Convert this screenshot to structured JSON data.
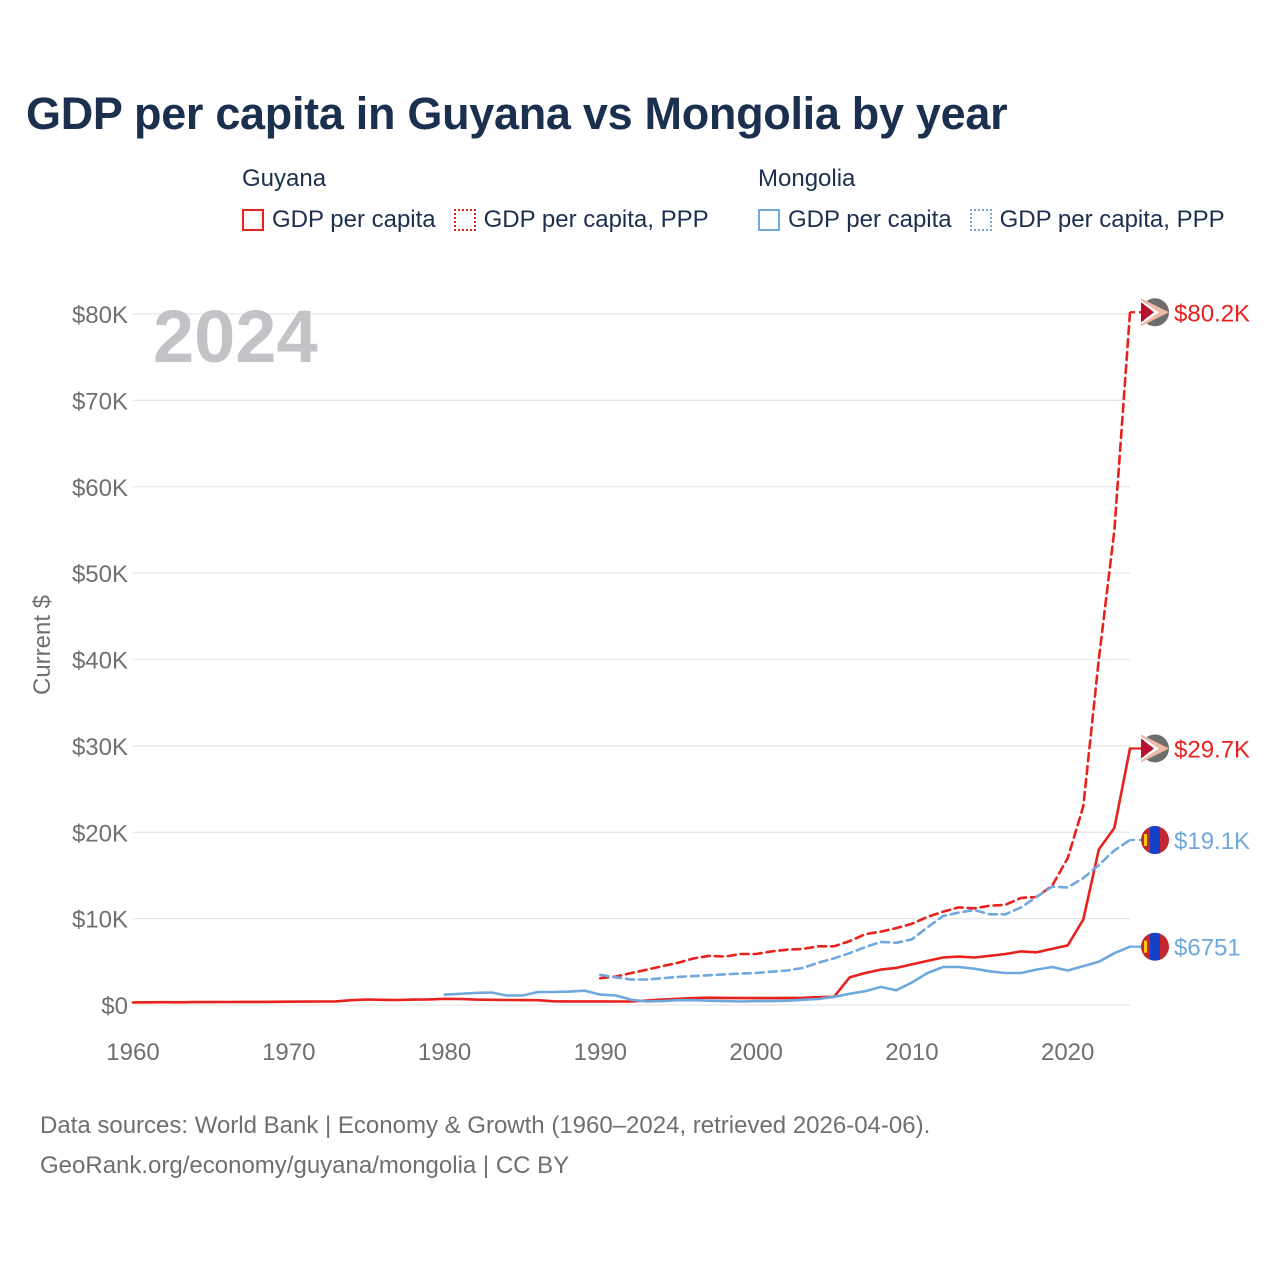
{
  "title": "GDP per capita in Guyana vs Mongolia by year",
  "legend": {
    "groups": [
      {
        "name": "Guyana",
        "color": "#e8211d",
        "items": [
          {
            "label": "GDP per capita",
            "style": "solid"
          },
          {
            "label": "GDP per capita, PPP",
            "style": "dotted"
          }
        ]
      },
      {
        "name": "Mongolia",
        "color": "#6fa8dc",
        "items": [
          {
            "label": "GDP per capita",
            "style": "solid"
          },
          {
            "label": "GDP per capita, PPP",
            "style": "dotted"
          }
        ]
      }
    ]
  },
  "year_label": "2024",
  "footer": {
    "line1": "Data sources: World Bank | Economy & Growth (1960–2024, retrieved 2026-04-06).",
    "line2": "GeoRank.org/economy/guyana/mongolia | CC BY"
  },
  "chart_data": {
    "type": "line",
    "ylabel": "Current $",
    "xlim": [
      1960,
      2024
    ],
    "ylim": [
      0,
      80000
    ],
    "xticks": [
      1960,
      1970,
      1980,
      1990,
      2000,
      2010,
      2020
    ],
    "xtick_labels": [
      "1960",
      "1970",
      "1980",
      "1990",
      "2000",
      "2010",
      "2020"
    ],
    "yticks": [
      0,
      10000,
      20000,
      30000,
      40000,
      50000,
      60000,
      70000,
      80000
    ],
    "ytick_labels": [
      "$0",
      "$10K",
      "$20K",
      "$30K",
      "$40K",
      "$50K",
      "$60K",
      "$70K",
      "$80K"
    ],
    "grid": true,
    "series": [
      {
        "name": "Guyana GDP per capita",
        "country": "Guyana",
        "metric": "GDP per capita",
        "style": "solid",
        "color": "#e8211d",
        "end_label": "$29.7K",
        "x": [
          1960,
          1961,
          1962,
          1963,
          1964,
          1965,
          1966,
          1967,
          1968,
          1969,
          1970,
          1971,
          1972,
          1973,
          1974,
          1975,
          1976,
          1977,
          1978,
          1979,
          1980,
          1981,
          1982,
          1983,
          1984,
          1985,
          1986,
          1987,
          1988,
          1989,
          1990,
          1991,
          1992,
          1993,
          1994,
          1995,
          1996,
          1997,
          1998,
          1999,
          2000,
          2001,
          2002,
          2003,
          2004,
          2005,
          2006,
          2007,
          2008,
          2009,
          2010,
          2011,
          2012,
          2013,
          2014,
          2015,
          2016,
          2017,
          2018,
          2019,
          2020,
          2021,
          2022,
          2023,
          2024
        ],
        "y": [
          300,
          310,
          320,
          310,
          330,
          340,
          350,
          360,
          360,
          370,
          380,
          390,
          400,
          420,
          560,
          640,
          600,
          580,
          620,
          650,
          720,
          700,
          620,
          600,
          580,
          570,
          560,
          430,
          420,
          420,
          420,
          400,
          420,
          510,
          620,
          720,
          800,
          850,
          820,
          800,
          800,
          800,
          820,
          830,
          900,
          950,
          3200,
          3700,
          4100,
          4300,
          4700,
          5100,
          5500,
          5600,
          5500,
          5700,
          5900,
          6200,
          6100,
          6500,
          6900,
          9900,
          18000,
          20500,
          29700
        ]
      },
      {
        "name": "Guyana GDP per capita, PPP",
        "country": "Guyana",
        "metric": "GDP per capita, PPP",
        "style": "dashed",
        "color": "#e8211d",
        "end_label": "$80.2K",
        "x": [
          1990,
          1991,
          1992,
          1993,
          1994,
          1995,
          1996,
          1997,
          1998,
          1999,
          2000,
          2001,
          2002,
          2003,
          2004,
          2005,
          2006,
          2007,
          2008,
          2009,
          2010,
          2011,
          2012,
          2013,
          2014,
          2015,
          2016,
          2017,
          2018,
          2019,
          2020,
          2021,
          2022,
          2023,
          2024
        ],
        "y": [
          3100,
          3300,
          3700,
          4100,
          4500,
          4900,
          5400,
          5700,
          5600,
          5900,
          5900,
          6200,
          6400,
          6500,
          6800,
          6800,
          7400,
          8200,
          8500,
          8900,
          9400,
          10200,
          10800,
          11300,
          11200,
          11500,
          11600,
          12400,
          12500,
          13800,
          17000,
          23000,
          40000,
          55000,
          80200
        ]
      },
      {
        "name": "Mongolia GDP per capita",
        "country": "Mongolia",
        "metric": "GDP per capita",
        "style": "solid",
        "color": "#6fa8dc",
        "end_label": "$6751",
        "x": [
          1980,
          1981,
          1982,
          1983,
          1984,
          1985,
          1986,
          1987,
          1988,
          1989,
          1990,
          1991,
          1992,
          1993,
          1994,
          1995,
          1996,
          1997,
          1998,
          1999,
          2000,
          2001,
          2002,
          2003,
          2004,
          2005,
          2006,
          2007,
          2008,
          2009,
          2010,
          2011,
          2012,
          2013,
          2014,
          2015,
          2016,
          2017,
          2018,
          2019,
          2020,
          2021,
          2022,
          2023,
          2024
        ],
        "y": [
          1200,
          1300,
          1400,
          1450,
          1100,
          1100,
          1500,
          1500,
          1550,
          1650,
          1200,
          1100,
          600,
          400,
          450,
          550,
          550,
          500,
          450,
          400,
          450,
          450,
          500,
          600,
          700,
          950,
          1300,
          1600,
          2100,
          1700,
          2600,
          3700,
          4400,
          4400,
          4200,
          3900,
          3700,
          3700,
          4100,
          4400,
          4000,
          4500,
          5000,
          6000,
          6751
        ]
      },
      {
        "name": "Mongolia GDP per capita, PPP",
        "country": "Mongolia",
        "metric": "GDP per capita, PPP",
        "style": "dashed",
        "color": "#6fa8dc",
        "end_label": "$19.1K",
        "x": [
          1990,
          1991,
          1992,
          1993,
          1994,
          1995,
          1996,
          1997,
          1998,
          1999,
          2000,
          2001,
          2002,
          2003,
          2004,
          2005,
          2006,
          2007,
          2008,
          2009,
          2010,
          2011,
          2012,
          2013,
          2014,
          2015,
          2016,
          2017,
          2018,
          2019,
          2020,
          2021,
          2022,
          2023,
          2024
        ],
        "y": [
          3500,
          3200,
          2950,
          2950,
          3100,
          3250,
          3350,
          3450,
          3550,
          3650,
          3700,
          3850,
          4000,
          4300,
          4900,
          5400,
          6000,
          6700,
          7300,
          7200,
          7600,
          9000,
          10300,
          10700,
          11000,
          10500,
          10500,
          11300,
          12500,
          13700,
          13600,
          14700,
          16200,
          17900,
          19100
        ]
      }
    ]
  }
}
